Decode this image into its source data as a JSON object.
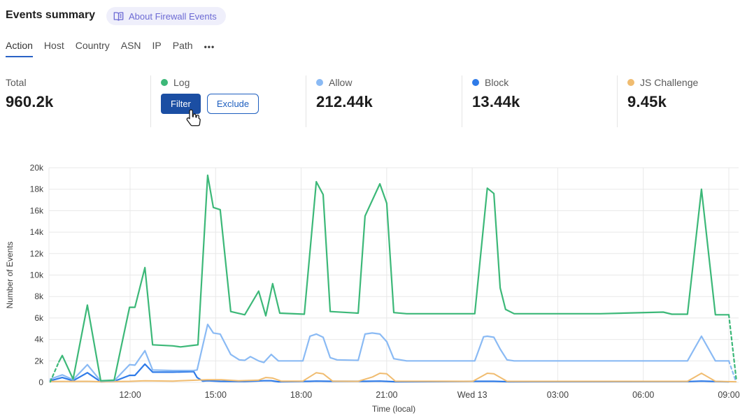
{
  "header": {
    "title": "Events summary",
    "about_badge": "About Firewall Events"
  },
  "tabs": {
    "items": [
      "Action",
      "Host",
      "Country",
      "ASN",
      "IP",
      "Path"
    ],
    "more_label": "•••",
    "active": "Action",
    "active_underline_color": "#2a62c6"
  },
  "stats": {
    "total_label": "Total",
    "total_value": "960.2k",
    "filter_label": "Filter",
    "exclude_label": "Exclude",
    "allow_value": "212.44k",
    "block_value": "13.44k",
    "js_challenge_value": "9.45k"
  },
  "colors": {
    "filter_button_bg": "#1b4ea3",
    "exclude_button_accent": "#1d5ebf",
    "badge_bg": "#efeffb",
    "badge_text": "#6c6ad4"
  },
  "chart_data": {
    "type": "line",
    "title": "",
    "xlabel": "Time (local)",
    "ylabel": "Number of Events",
    "x_unit_note": "t = hours after 09:00 local; 15 = Wed 13 midnight",
    "ylim": [
      0,
      20000
    ],
    "grid": true,
    "legend_position": "stats-row-top",
    "grid_color": "#e8e8e8",
    "axis_text_color": "#3f3f3f",
    "y_ticks": [
      {
        "v": 0,
        "label": "0"
      },
      {
        "v": 2000,
        "label": "2k"
      },
      {
        "v": 4000,
        "label": "4k"
      },
      {
        "v": 6000,
        "label": "6k"
      },
      {
        "v": 8000,
        "label": "8k"
      },
      {
        "v": 10000,
        "label": "10k"
      },
      {
        "v": 12000,
        "label": "12k"
      },
      {
        "v": 14000,
        "label": "14k"
      },
      {
        "v": 16000,
        "label": "16k"
      },
      {
        "v": 18000,
        "label": "18k"
      },
      {
        "v": 20000,
        "label": "20k"
      }
    ],
    "x_ticks": [
      {
        "t": 3,
        "label": "12:00"
      },
      {
        "t": 6,
        "label": "15:00"
      },
      {
        "t": 9,
        "label": "18:00"
      },
      {
        "t": 12,
        "label": "21:00"
      },
      {
        "t": 15,
        "label": "Wed 13"
      },
      {
        "t": 18,
        "label": "03:00"
      },
      {
        "t": 21,
        "label": "06:00"
      },
      {
        "t": 24,
        "label": "09:00"
      }
    ],
    "series": [
      {
        "name": "Log",
        "color": "#3cb878",
        "width": 2.2,
        "dash_head": true,
        "dash_tail": true,
        "points": [
          [
            0.2,
            50
          ],
          [
            0.5,
            1900
          ],
          [
            0.62,
            2500
          ],
          [
            1.0,
            300
          ],
          [
            1.5,
            7200
          ],
          [
            1.97,
            150
          ],
          [
            2.44,
            200
          ],
          [
            2.98,
            7000
          ],
          [
            3.17,
            7000
          ],
          [
            3.52,
            10700
          ],
          [
            3.79,
            3500
          ],
          [
            4.5,
            3400
          ],
          [
            4.77,
            3300
          ],
          [
            5.23,
            3450
          ],
          [
            5.38,
            3500
          ],
          [
            5.72,
            19300
          ],
          [
            5.92,
            16300
          ],
          [
            6.16,
            16100
          ],
          [
            6.53,
            6600
          ],
          [
            7.02,
            6300
          ],
          [
            7.51,
            8500
          ],
          [
            7.76,
            6200
          ],
          [
            8.0,
            9200
          ],
          [
            8.25,
            6450
          ],
          [
            9.11,
            6350
          ],
          [
            9.53,
            18700
          ],
          [
            9.77,
            17500
          ],
          [
            10.02,
            6600
          ],
          [
            11.0,
            6450
          ],
          [
            11.24,
            15500
          ],
          [
            11.76,
            18500
          ],
          [
            12.0,
            16700
          ],
          [
            12.25,
            6500
          ],
          [
            12.7,
            6400
          ],
          [
            15.09,
            6400
          ],
          [
            15.53,
            18100
          ],
          [
            15.76,
            17600
          ],
          [
            15.98,
            8800
          ],
          [
            16.17,
            6800
          ],
          [
            16.47,
            6400
          ],
          [
            19.5,
            6400
          ],
          [
            21.7,
            6550
          ],
          [
            22.0,
            6350
          ],
          [
            22.55,
            6350
          ],
          [
            23.04,
            18000
          ],
          [
            23.53,
            6300
          ],
          [
            24.0,
            6300
          ],
          [
            24.27,
            100
          ]
        ]
      },
      {
        "name": "Allow",
        "color": "#8abaf4",
        "width": 2.2,
        "dash_head": false,
        "dash_tail": true,
        "points": [
          [
            0.2,
            300
          ],
          [
            0.62,
            700
          ],
          [
            1.0,
            250
          ],
          [
            1.5,
            1650
          ],
          [
            1.97,
            120
          ],
          [
            2.44,
            150
          ],
          [
            2.98,
            1650
          ],
          [
            3.17,
            1600
          ],
          [
            3.52,
            2950
          ],
          [
            3.79,
            1150
          ],
          [
            4.5,
            1100
          ],
          [
            5.23,
            1100
          ],
          [
            5.35,
            1150
          ],
          [
            5.72,
            5400
          ],
          [
            5.92,
            4600
          ],
          [
            6.16,
            4500
          ],
          [
            6.53,
            2600
          ],
          [
            6.83,
            2100
          ],
          [
            7.02,
            2050
          ],
          [
            7.22,
            2400
          ],
          [
            7.51,
            2000
          ],
          [
            7.69,
            1850
          ],
          [
            7.95,
            2600
          ],
          [
            8.2,
            2000
          ],
          [
            9.06,
            2000
          ],
          [
            9.31,
            4300
          ],
          [
            9.53,
            4500
          ],
          [
            9.77,
            4200
          ],
          [
            10.02,
            2300
          ],
          [
            10.26,
            2100
          ],
          [
            11.0,
            2050
          ],
          [
            11.24,
            4500
          ],
          [
            11.49,
            4600
          ],
          [
            11.76,
            4500
          ],
          [
            12.0,
            3800
          ],
          [
            12.25,
            2200
          ],
          [
            12.7,
            2000
          ],
          [
            15.09,
            2000
          ],
          [
            15.4,
            4250
          ],
          [
            15.53,
            4300
          ],
          [
            15.76,
            4200
          ],
          [
            15.98,
            3100
          ],
          [
            16.22,
            2100
          ],
          [
            16.47,
            2000
          ],
          [
            22.55,
            2000
          ],
          [
            23.04,
            4300
          ],
          [
            23.53,
            2000
          ],
          [
            24.0,
            2000
          ],
          [
            24.25,
            80
          ]
        ]
      },
      {
        "name": "Block",
        "color": "#2f7be8",
        "width": 2.2,
        "dash_head": false,
        "dash_tail": false,
        "points": [
          [
            0.2,
            150
          ],
          [
            0.62,
            450
          ],
          [
            1.0,
            150
          ],
          [
            1.5,
            900
          ],
          [
            1.97,
            60
          ],
          [
            2.44,
            100
          ],
          [
            2.98,
            650
          ],
          [
            3.17,
            650
          ],
          [
            3.52,
            1700
          ],
          [
            3.79,
            950
          ],
          [
            4.5,
            950
          ],
          [
            5.23,
            1000
          ],
          [
            5.35,
            450
          ],
          [
            5.55,
            120
          ],
          [
            5.72,
            150
          ],
          [
            6.16,
            100
          ],
          [
            7.02,
            80
          ],
          [
            7.69,
            150
          ],
          [
            7.95,
            150
          ],
          [
            8.2,
            60
          ],
          [
            9.31,
            100
          ],
          [
            9.53,
            120
          ],
          [
            10.02,
            100
          ],
          [
            11.24,
            100
          ],
          [
            11.76,
            120
          ],
          [
            12.3,
            60
          ],
          [
            15.3,
            100
          ],
          [
            15.76,
            100
          ],
          [
            16.3,
            60
          ],
          [
            22.6,
            80
          ],
          [
            23.04,
            120
          ],
          [
            23.53,
            80
          ],
          [
            24.0,
            50
          ]
        ]
      },
      {
        "name": "JS Challenge",
        "color": "#f0bc70",
        "width": 2,
        "dash_head": false,
        "dash_tail": false,
        "points": [
          [
            0.2,
            80
          ],
          [
            1.5,
            100
          ],
          [
            2.0,
            60
          ],
          [
            3.0,
            100
          ],
          [
            3.52,
            150
          ],
          [
            4.5,
            120
          ],
          [
            5.7,
            250
          ],
          [
            6.2,
            250
          ],
          [
            6.8,
            150
          ],
          [
            7.5,
            200
          ],
          [
            7.76,
            450
          ],
          [
            8.0,
            400
          ],
          [
            8.3,
            120
          ],
          [
            9.06,
            120
          ],
          [
            9.53,
            900
          ],
          [
            9.77,
            800
          ],
          [
            10.1,
            120
          ],
          [
            11.0,
            100
          ],
          [
            11.5,
            500
          ],
          [
            11.76,
            850
          ],
          [
            12.0,
            800
          ],
          [
            12.3,
            120
          ],
          [
            15.02,
            100
          ],
          [
            15.53,
            850
          ],
          [
            15.76,
            800
          ],
          [
            16.22,
            100
          ],
          [
            22.55,
            100
          ],
          [
            23.04,
            850
          ],
          [
            23.53,
            100
          ],
          [
            24.25,
            60
          ]
        ]
      }
    ]
  }
}
